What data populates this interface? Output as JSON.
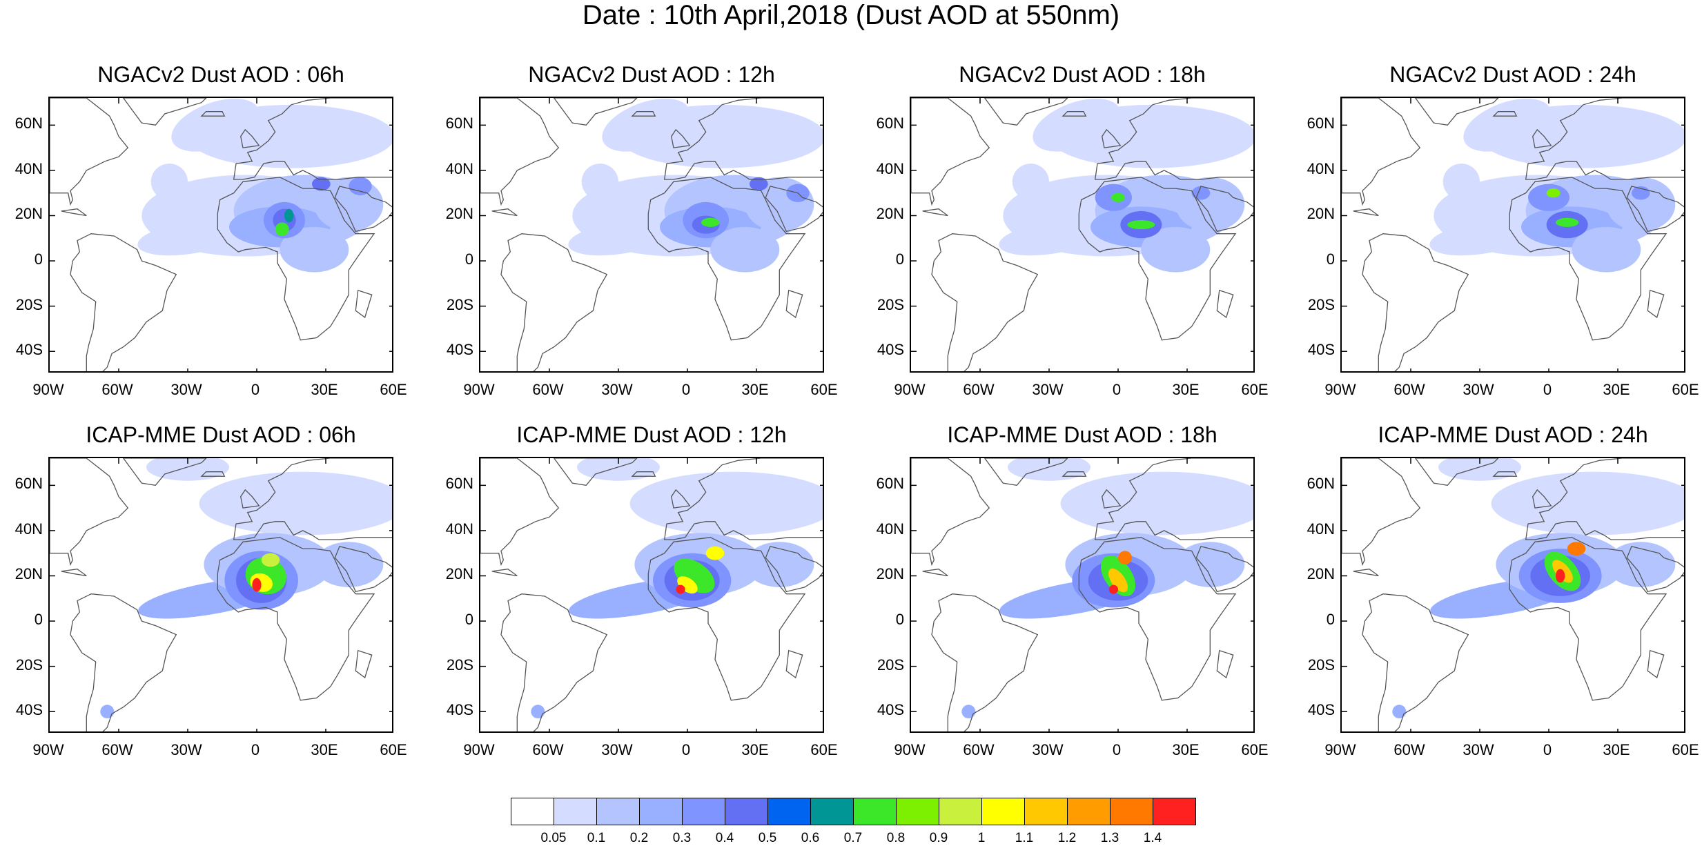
{
  "title": "Date : 10th April,2018 (Dust AOD at 550nm)",
  "lat_labels": [
    "60N",
    "40N",
    "20N",
    "0",
    "20S",
    "40S"
  ],
  "lon_labels": [
    "90W",
    "60W",
    "30W",
    "0",
    "30E",
    "60E"
  ],
  "panels": [
    {
      "title": "NGACv2 Dust AOD : 06h",
      "model": "NGACv2",
      "hour": "06h",
      "peak_aod": 0.9
    },
    {
      "title": "NGACv2 Dust AOD : 12h",
      "model": "NGACv2",
      "hour": "12h",
      "peak_aod": 0.9
    },
    {
      "title": "NGACv2 Dust AOD : 18h",
      "model": "NGACv2",
      "hour": "18h",
      "peak_aod": 1.0
    },
    {
      "title": "NGACv2 Dust AOD : 24h",
      "model": "NGACv2",
      "hour": "24h",
      "peak_aod": 1.0
    },
    {
      "title": "ICAP-MME Dust AOD : 06h",
      "model": "ICAP-MME",
      "hour": "06h",
      "peak_aod": 1.4
    },
    {
      "title": "ICAP-MME Dust AOD : 12h",
      "model": "ICAP-MME",
      "hour": "12h",
      "peak_aod": 1.4
    },
    {
      "title": "ICAP-MME Dust AOD : 18h",
      "model": "ICAP-MME",
      "hour": "18h",
      "peak_aod": 1.4
    },
    {
      "title": "ICAP-MME Dust AOD : 24h",
      "model": "ICAP-MME",
      "hour": "24h",
      "peak_aod": 1.4
    }
  ],
  "colorbar": {
    "labels": [
      "0.05",
      "0.1",
      "0.2",
      "0.3",
      "0.4",
      "0.5",
      "0.6",
      "0.7",
      "0.8",
      "0.9",
      "1",
      "1.1",
      "1.2",
      "1.3",
      "1.4"
    ],
    "colors": [
      "#ffffff",
      "#d4dcff",
      "#b4c4ff",
      "#98b0ff",
      "#8094ff",
      "#6470f4",
      "#0064f0",
      "#009696",
      "#3ce628",
      "#7cf000",
      "#c8f03c",
      "#ffff00",
      "#ffc800",
      "#ff9c00",
      "#ff7800",
      "#ff2020"
    ]
  },
  "map_colors": {
    "land_outline": "#555555",
    "frame": "#000000"
  }
}
